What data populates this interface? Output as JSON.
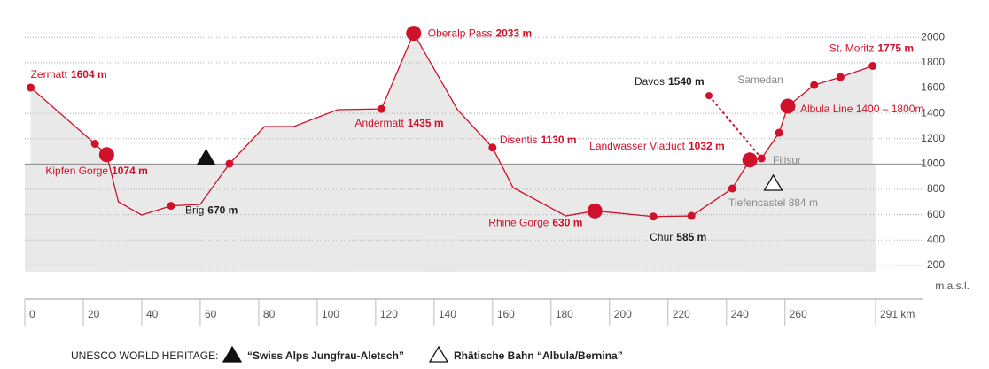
{
  "chart_data": {
    "type": "line",
    "x": [
      2,
      24,
      28,
      32,
      40,
      50,
      60,
      70,
      82,
      92,
      107,
      122,
      133,
      148,
      160,
      167,
      185,
      195,
      215,
      228,
      242,
      248,
      252,
      258,
      261,
      270,
      279,
      290
    ],
    "values": [
      1604,
      1160,
      1074,
      702,
      597,
      670,
      681,
      1003,
      1296,
      1296,
      1429,
      1435,
      2033,
      1429,
      1130,
      814,
      590,
      630,
      585,
      590,
      807,
      1032,
      1045,
      1247,
      1457,
      1624,
      1687,
      1775
    ],
    "markers": [
      "small",
      "small",
      "large",
      null,
      null,
      "small",
      null,
      "small",
      null,
      null,
      null,
      "small",
      "large",
      null,
      "small",
      null,
      null,
      "large",
      "small",
      "small",
      "small",
      "large",
      "small",
      "small",
      "large",
      "small",
      "small",
      "small"
    ],
    "names": [
      "Zermatt",
      null,
      "Kipfen Gorge",
      null,
      null,
      "Brig",
      null,
      null,
      null,
      null,
      null,
      "Andermatt",
      "Oberalp Pass",
      null,
      "Disentis",
      null,
      null,
      "Rhine Gorge",
      "Chur",
      null,
      null,
      "Landwasser Viaduct",
      null,
      null,
      null,
      null,
      null,
      "St. Moritz"
    ],
    "value_labels": [
      "1604 m",
      null,
      "1074 m",
      null,
      null,
      "670 m",
      null,
      null,
      null,
      null,
      null,
      "1435 m",
      "2033 m",
      null,
      "1130 m",
      null,
      null,
      "630 m",
      "585 m",
      null,
      null,
      "1032 m",
      null,
      null,
      null,
      null,
      null,
      "1775 m"
    ],
    "label_colors": [
      "#d0112b",
      null,
      "#d0112b",
      null,
      null,
      "#222222",
      null,
      null,
      null,
      null,
      null,
      "#d0112b",
      "#d0112b",
      null,
      "#d0112b",
      null,
      null,
      "#d0112b",
      "#222222",
      null,
      null,
      "#d0112b",
      null,
      null,
      null,
      null,
      null,
      "#d0112b"
    ],
    "color": "#d0112b",
    "fill": "#e9e9e9",
    "spur": {
      "x": [
        234,
        252
      ],
      "values": [
        1540,
        1045
      ],
      "name": "Davos",
      "value_label": "1540 m",
      "dashed": true
    },
    "annotations": [
      "Samedan",
      "Filisur",
      "Tiefencastel 884 m",
      "Albula Line 1400 – 1800m"
    ],
    "heritage": [
      {
        "name": "“Swiss Alps Jungfrau-Aletsch”",
        "km": 62,
        "elevation": 1050,
        "filled": true
      },
      {
        "name": "Rhätische Bahn “Albula/Bernina”",
        "km": 256,
        "elevation": 849,
        "filled": false
      }
    ],
    "legend_title": "UNESCO WORLD HERITAGE:",
    "y_unit": "m.a.s.l.",
    "xlim": [
      0,
      291
    ],
    "ylim": [
      150,
      2100
    ],
    "xticks": [
      0,
      20,
      40,
      60,
      80,
      100,
      120,
      140,
      160,
      180,
      200,
      220,
      240,
      260,
      {
        "value": 291,
        "label": "291 km"
      }
    ],
    "yticks": [
      200,
      400,
      600,
      800,
      1000,
      1200,
      1400,
      1600,
      1800,
      2000
    ],
    "reference_line": 1000,
    "grid": true
  }
}
